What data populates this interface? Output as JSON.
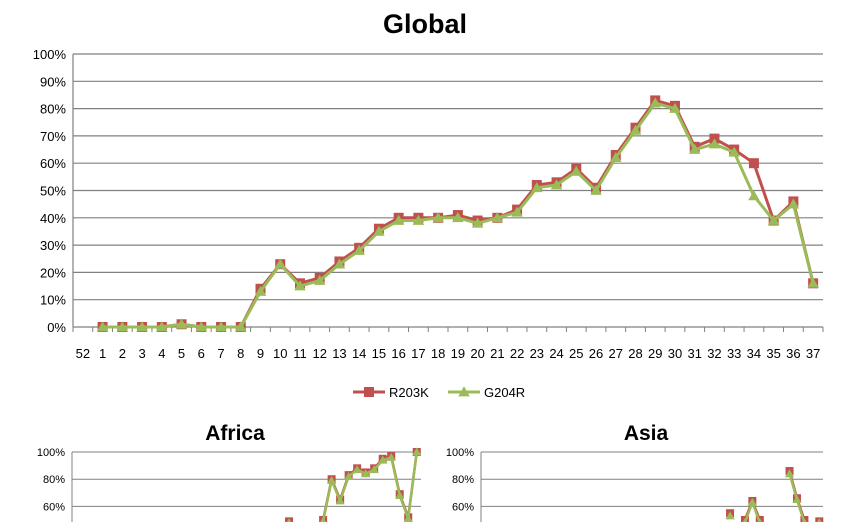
{
  "colors": {
    "r203k": "#c0504d",
    "g204r": "#9bbb59",
    "grid": "#808080"
  },
  "chart_data": [
    {
      "name": "global",
      "type": "line",
      "title": "Global",
      "x": [
        "52",
        "1",
        "2",
        "3",
        "4",
        "5",
        "6",
        "7",
        "8",
        "9",
        "10",
        "11",
        "12",
        "13",
        "14",
        "15",
        "16",
        "17",
        "18",
        "19",
        "20",
        "21",
        "22",
        "23",
        "24",
        "25",
        "26",
        "27",
        "28",
        "29",
        "30",
        "31",
        "32",
        "33",
        "34",
        "35",
        "36",
        "37"
      ],
      "ylim": [
        0,
        100
      ],
      "yticks": [
        "0%",
        "10%",
        "20%",
        "30%",
        "40%",
        "50%",
        "60%",
        "70%",
        "80%",
        "90%",
        "100%"
      ],
      "grid": true,
      "legend": "bottom",
      "series": [
        {
          "name": "R203K",
          "marker": "square",
          "values": [
            null,
            0,
            0,
            0,
            0,
            1,
            0,
            0,
            0,
            14,
            23,
            16,
            18,
            24,
            29,
            36,
            40,
            40,
            40,
            41,
            39,
            40,
            43,
            52,
            53,
            58,
            51,
            63,
            73,
            83,
            81,
            66,
            69,
            65,
            60,
            39,
            46,
            16
          ]
        },
        {
          "name": "G204R",
          "marker": "triangle",
          "values": [
            null,
            0,
            0,
            0,
            0,
            1,
            0,
            0,
            0,
            13,
            23,
            15,
            17,
            23,
            28,
            35,
            39,
            39,
            40,
            40,
            38,
            40,
            42,
            51,
            52,
            57,
            50,
            62,
            72,
            82,
            80,
            65,
            67,
            64,
            48,
            39,
            45,
            16
          ]
        }
      ]
    },
    {
      "name": "africa",
      "type": "line",
      "title": "Africa",
      "ylim": [
        0,
        100
      ],
      "yticks": [
        "60%",
        "80%",
        "100%"
      ],
      "grid": true,
      "series": [
        {
          "name": "R203K",
          "values": [
            null,
            null,
            null,
            null,
            null,
            null,
            null,
            null,
            null,
            null,
            null,
            null,
            null,
            null,
            null,
            null,
            null,
            null,
            null,
            null,
            null,
            null,
            null,
            null,
            null,
            49,
            null,
            null,
            null,
            50,
            80,
            65,
            83,
            88,
            85,
            88,
            95,
            97,
            69,
            52,
            100
          ]
        },
        {
          "name": "G204R",
          "values": [
            null,
            null,
            null,
            null,
            null,
            null,
            null,
            null,
            null,
            null,
            null,
            null,
            null,
            null,
            null,
            null,
            null,
            null,
            null,
            null,
            null,
            null,
            null,
            null,
            null,
            48,
            null,
            null,
            null,
            49,
            79,
            64,
            82,
            87,
            84,
            87,
            94,
            96,
            68,
            51,
            100
          ]
        }
      ]
    },
    {
      "name": "asia",
      "type": "line",
      "title": "Asia",
      "ylim": [
        0,
        100
      ],
      "yticks": [
        "60%",
        "80%",
        "100%"
      ],
      "grid": true,
      "series": [
        {
          "name": "R203K",
          "values": [
            null,
            null,
            null,
            null,
            null,
            null,
            null,
            null,
            null,
            null,
            null,
            null,
            null,
            null,
            null,
            null,
            null,
            null,
            null,
            null,
            null,
            null,
            null,
            null,
            null,
            null,
            null,
            null,
            null,
            null,
            null,
            null,
            null,
            55,
            null,
            50,
            64,
            50,
            null,
            null,
            null,
            86,
            66,
            50,
            null,
            49
          ]
        },
        {
          "name": "G204R",
          "values": [
            null,
            null,
            null,
            null,
            null,
            null,
            null,
            null,
            null,
            null,
            null,
            null,
            null,
            null,
            null,
            null,
            null,
            null,
            null,
            null,
            null,
            null,
            null,
            null,
            null,
            null,
            null,
            null,
            null,
            null,
            null,
            null,
            null,
            53,
            null,
            48,
            63,
            48,
            null,
            null,
            null,
            84,
            65,
            48,
            null,
            48
          ]
        }
      ]
    }
  ]
}
